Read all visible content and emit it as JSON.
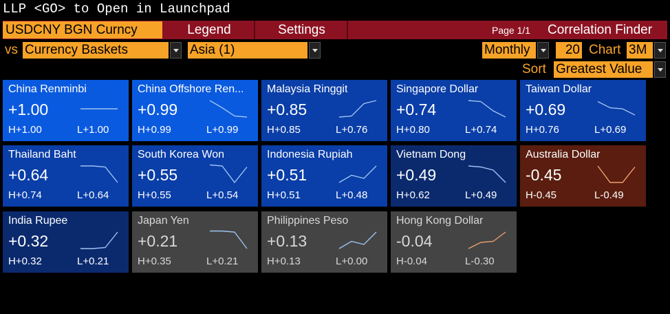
{
  "command": "LLP <GO> to Open in Launchpad",
  "security": "USDCNY BGN Curncy",
  "tabs": {
    "legend": "Legend",
    "settings": "Settings"
  },
  "page_info": "Page 1/1",
  "app_title": "Correlation Finder",
  "vs_label": "vs",
  "basket": "Currency Baskets",
  "region": "Asia (1)",
  "periodicity": "Monthly",
  "count": "20",
  "chart_label": "Chart",
  "chart_range": "3M",
  "sort_label": "Sort",
  "sort_value": "Greatest Value",
  "colors": {
    "amber": "#f7a328",
    "header_red": "#8c1222",
    "tile_blue_bright": "#0a5ae0",
    "tile_blue": "#0a3ea8",
    "tile_navy": "#0b2a6e",
    "tile_gray": "#444444",
    "tile_brown": "#5a1d10",
    "spark_blue": "#9ec4f2",
    "spark_orange": "#f0a070"
  },
  "tiles": [
    {
      "name": "China Renminbi",
      "value": "+1.00",
      "high": "H+1.00",
      "low": "L+1.00",
      "spark": [
        0.5,
        0.5,
        0.5,
        0.5
      ],
      "color": "bright"
    },
    {
      "name": "China Offshore Ren...",
      "value": "+0.99",
      "high": "H+0.99",
      "low": "L+0.99",
      "spark": [
        0.1,
        0.45,
        0.85,
        0.9
      ],
      "color": "bright"
    },
    {
      "name": "Malaysia Ringgit",
      "value": "+0.85",
      "high": "H+0.85",
      "low": "L+0.76",
      "spark": [
        0.9,
        0.85,
        0.25,
        0.1
      ],
      "color": "blue"
    },
    {
      "name": "Singapore Dollar",
      "value": "+0.74",
      "high": "H+0.80",
      "low": "L+0.74",
      "spark": [
        0.1,
        0.15,
        0.6,
        0.9
      ],
      "color": "blue"
    },
    {
      "name": "Taiwan Dollar",
      "value": "+0.69",
      "high": "H+0.76",
      "low": "L+0.69",
      "spark": [
        0.15,
        0.45,
        0.5,
        0.8
      ],
      "color": "blue"
    },
    {
      "name": "Thailand Baht",
      "value": "+0.64",
      "high": "H+0.74",
      "low": "L+0.64",
      "spark": [
        0.1,
        0.1,
        0.15,
        0.9
      ],
      "color": "blue"
    },
    {
      "name": "South Korea Won",
      "value": "+0.55",
      "high": "H+0.55",
      "low": "L+0.54",
      "spark": [
        0.05,
        0.1,
        0.9,
        0.15
      ],
      "color": "blue"
    },
    {
      "name": "Indonesia Rupiah",
      "value": "+0.51",
      "high": "H+0.51",
      "low": "L+0.48",
      "spark": [
        0.9,
        0.55,
        0.7,
        0.1
      ],
      "color": "blue"
    },
    {
      "name": "Vietnam Dong",
      "value": "+0.49",
      "high": "H+0.62",
      "low": "L+0.49",
      "spark": [
        0.1,
        0.15,
        0.3,
        0.9
      ],
      "color": "navy"
    },
    {
      "name": "Australia Dollar",
      "value": "-0.45",
      "high": "H-0.45",
      "low": "L-0.49",
      "spark": [
        0.1,
        0.9,
        0.9,
        0.15
      ],
      "color": "brown"
    },
    {
      "name": "India Rupee",
      "value": "+0.32",
      "high": "H+0.32",
      "low": "L+0.21",
      "spark": [
        0.9,
        0.9,
        0.85,
        0.1
      ],
      "color": "navy"
    },
    {
      "name": "Japan Yen",
      "value": "+0.21",
      "high": "H+0.35",
      "low": "L+0.21",
      "spark": [
        0.05,
        0.05,
        0.1,
        0.9
      ],
      "color": "gray"
    },
    {
      "name": "Philippines Peso",
      "value": "+0.13",
      "high": "H+0.13",
      "low": "L+0.00",
      "spark": [
        0.9,
        0.55,
        0.7,
        0.1
      ],
      "color": "gray"
    },
    {
      "name": "Hong Kong Dollar",
      "value": "-0.04",
      "high": "H-0.04",
      "low": "L-0.30",
      "spark": [
        0.9,
        0.6,
        0.55,
        0.1
      ],
      "color": "gray"
    }
  ]
}
